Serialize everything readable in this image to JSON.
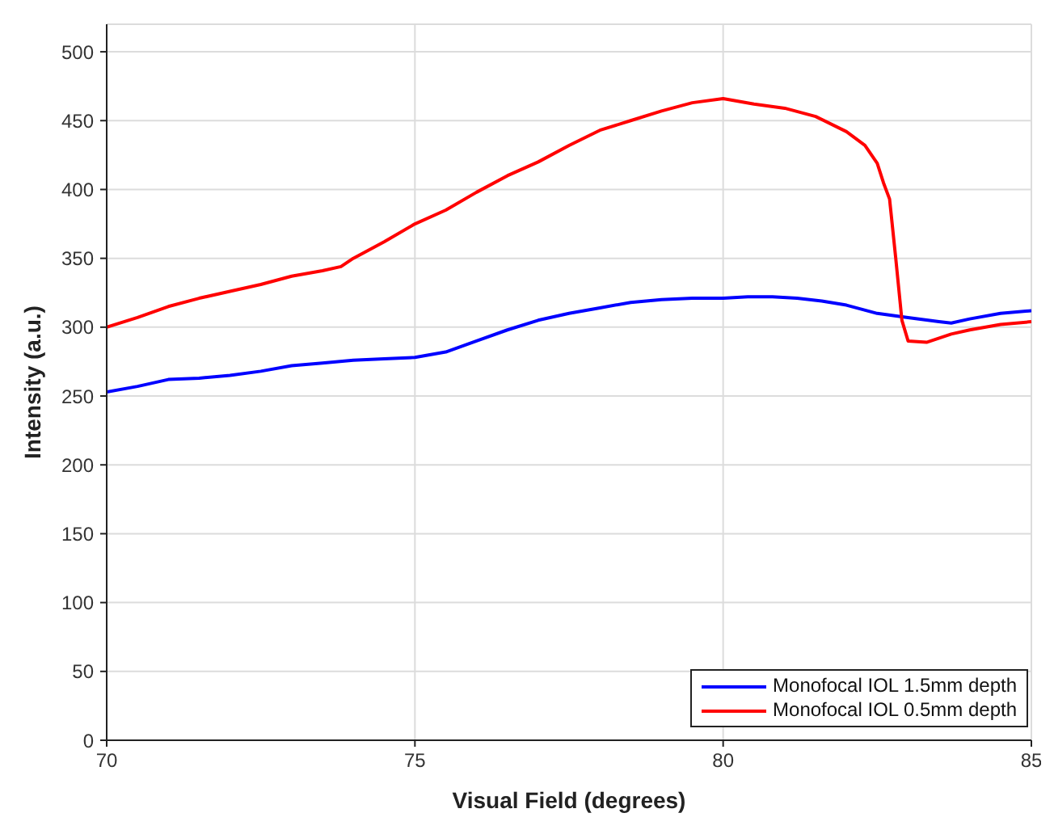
{
  "chart_data": {
    "type": "line",
    "xlabel": "Visual Field (degrees)",
    "ylabel": "Intensity (a.u.)",
    "xlim": [
      70,
      85
    ],
    "xticks": [
      70,
      75,
      80,
      85
    ],
    "ylim": [
      0,
      520
    ],
    "yticks": [
      0,
      50,
      100,
      150,
      200,
      250,
      300,
      350,
      400,
      450,
      500
    ],
    "grid": true,
    "legend": "bottom right",
    "marker": "none",
    "line_style": "solid",
    "series": [
      {
        "name": "Monofocal IOL 1.5mm depth",
        "color": "#0000ff",
        "x": [
          70,
          70.5,
          71,
          71.5,
          72,
          72.5,
          73,
          73.5,
          74,
          74.5,
          75,
          75.5,
          76,
          76.5,
          77,
          77.5,
          78,
          78.5,
          79,
          79.5,
          80,
          80.4,
          80.8,
          81.2,
          81.6,
          82,
          82.5,
          83,
          83.5,
          83.7,
          84,
          84.5,
          85
        ],
        "values": [
          253,
          257,
          262,
          263,
          265,
          268,
          272,
          274,
          276,
          277,
          278,
          282,
          290,
          298,
          305,
          310,
          314,
          318,
          320,
          321,
          321,
          322,
          322,
          321,
          319,
          316,
          310,
          307,
          304,
          303,
          306,
          310,
          312
        ]
      },
      {
        "name": "Monofocal IOL 0.5mm depth",
        "color": "#ff0000",
        "x": [
          70,
          70.5,
          71,
          71.5,
          72,
          72.5,
          73,
          73.5,
          73.8,
          74,
          74.5,
          75,
          75.5,
          76,
          76.5,
          77,
          77.5,
          78,
          78.5,
          79,
          79.5,
          80,
          80.5,
          81,
          81.5,
          82,
          82.3,
          82.5,
          82.6,
          82.7,
          82.8,
          82.9,
          83,
          83.3,
          83.7,
          84,
          84.5,
          85
        ],
        "values": [
          300,
          307,
          315,
          321,
          326,
          331,
          337,
          341,
          344,
          350,
          362,
          375,
          385,
          398,
          410,
          420,
          432,
          443,
          450,
          457,
          463,
          466,
          462,
          459,
          453,
          442,
          432,
          419,
          405,
          393,
          350,
          305,
          290,
          289,
          295,
          298,
          302,
          304
        ]
      }
    ]
  }
}
